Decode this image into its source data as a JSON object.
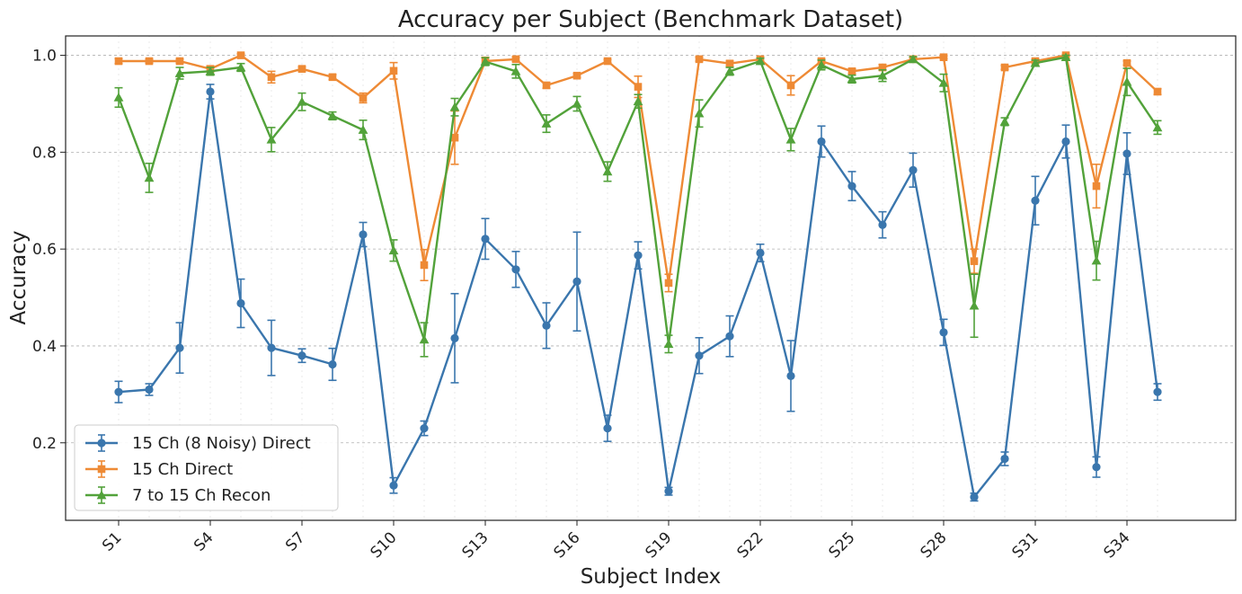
{
  "chart_data": {
    "type": "line",
    "title": "Accuracy per Subject (Benchmark Dataset)",
    "xlabel": "Subject Index",
    "ylabel": "Accuracy",
    "ylim": [
      0.04,
      1.04
    ],
    "yticks": [
      0.2,
      0.4,
      0.6,
      0.8,
      1.0
    ],
    "ytick_labels": [
      "0.2",
      "0.4",
      "0.6",
      "0.8",
      "1.0"
    ],
    "x_tick_labels": [
      "S1",
      "S4",
      "S7",
      "S10",
      "S13",
      "S16",
      "S19",
      "S22",
      "S25",
      "S28",
      "S31",
      "S34"
    ],
    "grid": true,
    "legend_position": "bottom-left",
    "x": [
      "S1",
      "S2",
      "S3",
      "S4",
      "S5",
      "S6",
      "S7",
      "S8",
      "S9",
      "S10",
      "S11",
      "S12",
      "S13",
      "S14",
      "S15",
      "S16",
      "S17",
      "S18",
      "S19",
      "S20",
      "S21",
      "S22",
      "S23",
      "S24",
      "S25",
      "S26",
      "S27",
      "S28",
      "S29",
      "S30",
      "S31",
      "S32",
      "S33",
      "S34",
      "S35"
    ],
    "series": [
      {
        "name": "15 Ch (8 Noisy) Direct",
        "color": "#3a76ad",
        "marker": "circle",
        "values": [
          0.305,
          0.31,
          0.396,
          0.925,
          0.488,
          0.396,
          0.38,
          0.362,
          0.63,
          0.112,
          0.23,
          0.416,
          0.621,
          0.558,
          0.442,
          0.533,
          0.23,
          0.587,
          0.1,
          0.38,
          0.42,
          0.592,
          0.338,
          0.822,
          0.73,
          0.65,
          0.763,
          0.428,
          0.088,
          0.167,
          0.7,
          0.822,
          0.15,
          0.797,
          0.305
        ],
        "errors": [
          0.022,
          0.012,
          0.052,
          0.015,
          0.05,
          0.057,
          0.014,
          0.033,
          0.025,
          0.016,
          0.015,
          0.092,
          0.042,
          0.037,
          0.047,
          0.102,
          0.027,
          0.028,
          0.008,
          0.037,
          0.042,
          0.018,
          0.073,
          0.032,
          0.03,
          0.027,
          0.035,
          0.027,
          0.008,
          0.014,
          0.05,
          0.034,
          0.021,
          0.043,
          0.017
        ]
      },
      {
        "name": "15 Ch Direct",
        "color": "#ee8a35",
        "marker": "square",
        "values": [
          0.988,
          0.988,
          0.988,
          0.972,
          1.0,
          0.955,
          0.972,
          0.955,
          0.912,
          0.968,
          0.567,
          0.83,
          0.988,
          0.992,
          0.938,
          0.958,
          0.988,
          0.935,
          0.53,
          0.992,
          0.983,
          0.992,
          0.938,
          0.988,
          0.967,
          0.975,
          0.992,
          0.996,
          0.575,
          0.975,
          0.988,
          1.0,
          0.73,
          0.984,
          0.925
        ],
        "errors": [
          0.005,
          0.004,
          0.004,
          0.006,
          0.003,
          0.012,
          0.004,
          0.005,
          0.01,
          0.017,
          0.032,
          0.055,
          0.008,
          0.004,
          0.006,
          0.004,
          0.003,
          0.022,
          0.018,
          0.004,
          0.005,
          0.004,
          0.02,
          0.004,
          0.005,
          0.006,
          0.004,
          0.003,
          0.025,
          0.004,
          0.004,
          0.002,
          0.045,
          0.004,
          0.006
        ]
      },
      {
        "name": "7 to 15 Ch Recon",
        "color": "#52a23a",
        "marker": "triangle",
        "values": [
          0.913,
          0.747,
          0.963,
          0.967,
          0.975,
          0.826,
          0.904,
          0.875,
          0.846,
          0.597,
          0.413,
          0.893,
          0.987,
          0.967,
          0.859,
          0.9,
          0.76,
          0.905,
          0.404,
          0.88,
          0.967,
          0.988,
          0.826,
          0.98,
          0.951,
          0.958,
          0.992,
          0.943,
          0.483,
          0.863,
          0.984,
          0.996,
          0.576,
          0.945,
          0.851
        ],
        "errors": [
          0.02,
          0.03,
          0.012,
          0.008,
          0.008,
          0.025,
          0.018,
          0.008,
          0.02,
          0.022,
          0.035,
          0.018,
          0.008,
          0.014,
          0.018,
          0.015,
          0.02,
          0.014,
          0.018,
          0.028,
          0.008,
          0.006,
          0.023,
          0.01,
          0.008,
          0.012,
          0.005,
          0.018,
          0.065,
          0.008,
          0.006,
          0.004,
          0.04,
          0.028,
          0.014
        ]
      }
    ]
  }
}
